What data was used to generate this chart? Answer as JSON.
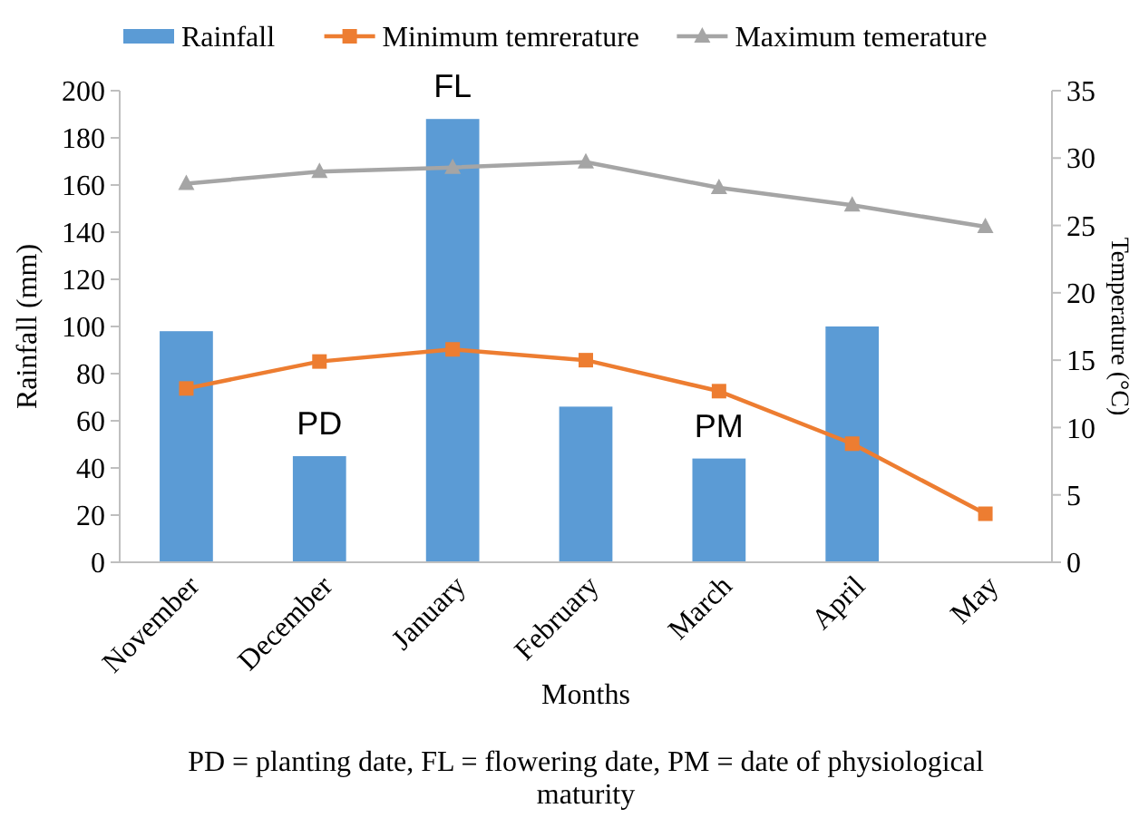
{
  "chart_data": {
    "type": "bar",
    "categories": [
      "November",
      "December",
      "January",
      "February",
      "March",
      "April",
      "May"
    ],
    "series": [
      {
        "name": "Rainfall",
        "color": "#5b9bd5",
        "values": [
          98,
          45,
          188,
          66,
          44,
          100,
          null
        ]
      },
      {
        "name": "Minimum temrerature",
        "type": "line",
        "axis": "y2",
        "color": "#ed7d31",
        "marker": "square",
        "values": [
          12.9,
          14.9,
          15.8,
          15.0,
          12.7,
          8.8,
          3.6
        ]
      },
      {
        "name": "Maximum temerature",
        "type": "line",
        "axis": "y2",
        "color": "#a5a5a5",
        "marker": "triangle",
        "values": [
          28.1,
          29.0,
          29.3,
          29.7,
          27.8,
          26.5,
          24.9
        ]
      }
    ],
    "xlabel": "Months",
    "ylabel": "Rainfall (mm)",
    "y2label": "Temperature (°C)",
    "ylim": [
      0,
      200
    ],
    "yticks": [
      0,
      20,
      40,
      60,
      80,
      100,
      120,
      140,
      160,
      180,
      200
    ],
    "y2lim": [
      0,
      35
    ],
    "y2ticks": [
      0,
      5,
      10,
      15,
      20,
      25,
      30,
      35
    ],
    "legend": "top",
    "grid": false,
    "annotations": [
      {
        "text": "PD",
        "x": "December",
        "y": 45
      },
      {
        "text": "FL",
        "x": "January",
        "y": 188
      },
      {
        "text": "PM",
        "x": "March",
        "y": 44
      },
      "PD = planting date, FL = flowering date, PM = date of physiological maturity"
    ]
  }
}
